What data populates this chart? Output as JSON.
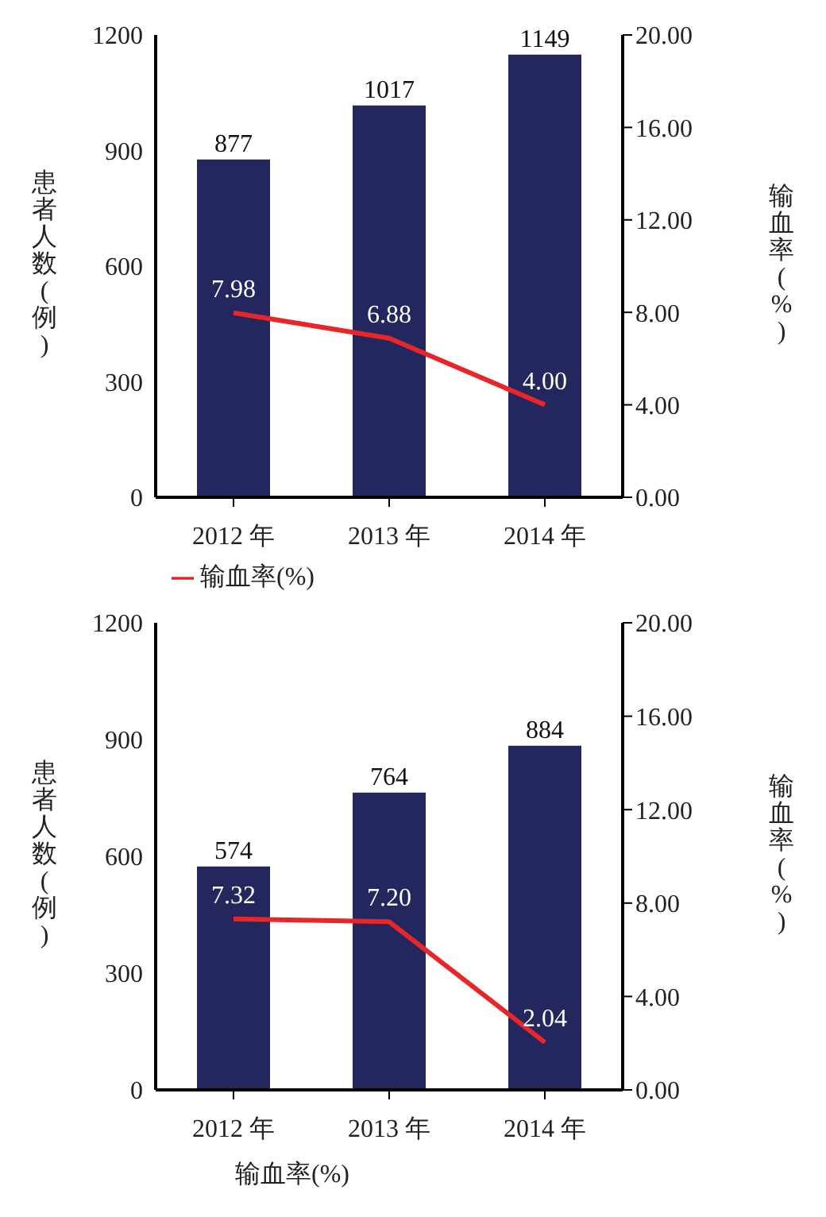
{
  "chart_data": [
    {
      "type": "bar",
      "categories": [
        "2012 年",
        "2013 年",
        "2014 年"
      ],
      "ylabel": "患者人数(例)",
      "y2label": "输血率(%)",
      "ylim": [
        0,
        1200
      ],
      "yticks": [
        0,
        300,
        600,
        900,
        1200
      ],
      "y2lim": [
        0,
        20
      ],
      "y2ticks": [
        {
          "value": 0,
          "label": "0.00"
        },
        {
          "value": 4,
          "label": "4.00"
        },
        {
          "value": 8,
          "label": "8.00"
        },
        {
          "value": 12,
          "label": "12.00"
        },
        {
          "value": 16,
          "label": "16.00"
        },
        {
          "value": 20,
          "label": "20.00"
        }
      ],
      "data_labels": true,
      "grid": false,
      "legend": "bottom left",
      "series": [
        {
          "color": "#23275e",
          "values": [
            877,
            1017,
            1149
          ]
        },
        {
          "type": "line",
          "name": "输血率(%)",
          "color": "#e8262a",
          "axis": "y2",
          "marker": "none",
          "values": [
            7.98,
            6.88,
            4.0
          ],
          "value_labels": [
            "7.98",
            "6.88",
            "4.00"
          ]
        }
      ]
    },
    {
      "type": "bar",
      "categories": [
        "2012 年",
        "2013 年",
        "2014 年"
      ],
      "xlabel": "输血率(%)",
      "ylabel": "患者人数(例)",
      "y2label": "输血率(%)",
      "ylim": [
        0,
        1200
      ],
      "yticks": [
        0,
        300,
        600,
        900,
        1200
      ],
      "y2lim": [
        0,
        20
      ],
      "y2ticks": [
        {
          "value": 0,
          "label": "0.00"
        },
        {
          "value": 4,
          "label": "4.00"
        },
        {
          "value": 8,
          "label": "8.00"
        },
        {
          "value": 12,
          "label": "12.00"
        },
        {
          "value": 16,
          "label": "16.00"
        },
        {
          "value": 20,
          "label": "20.00"
        }
      ],
      "data_labels": true,
      "grid": false,
      "series": [
        {
          "color": "#23275e",
          "values": [
            574,
            764,
            884
          ]
        },
        {
          "type": "line",
          "color": "#e8262a",
          "axis": "y2",
          "marker": "none",
          "values": [
            7.32,
            7.2,
            2.04
          ],
          "value_labels": [
            "7.32",
            "7.20",
            "2.04"
          ]
        }
      ]
    }
  ]
}
